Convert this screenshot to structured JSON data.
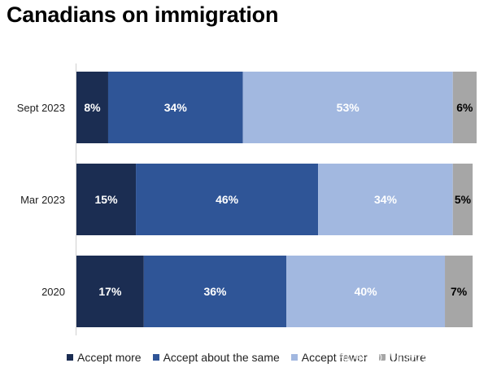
{
  "chart_data": {
    "type": "bar",
    "orientation": "horizontal",
    "stacked": true,
    "title": "Canadians on immigration",
    "categories": [
      "Sept 2023",
      "Mar 2023",
      "2020"
    ],
    "series": [
      {
        "name": "Accept more",
        "values": [
          8,
          15,
          17
        ],
        "labels": [
          "8%",
          "15%",
          "17%"
        ],
        "color": "#1b2d52",
        "label_color": "#ffffff"
      },
      {
        "name": "Accept about the same",
        "values": [
          34,
          46,
          36
        ],
        "labels": [
          "34%",
          "46%",
          "36%"
        ],
        "color": "#2f5597",
        "label_color": "#ffffff"
      },
      {
        "name": "Accept fewer",
        "values": [
          53,
          34,
          40
        ],
        "labels": [
          "53%",
          "34%",
          "40%"
        ],
        "color": "#a2b8e0",
        "label_color": "#ffffff"
      },
      {
        "name": "Unsure",
        "values": [
          6,
          5,
          7
        ],
        "labels": [
          "6%",
          "5%",
          "7%"
        ],
        "color": "#a6a6a6",
        "label_color": "#000000"
      }
    ],
    "xlim": [
      0,
      101
    ],
    "grid": false,
    "legend_position": "bottom"
  },
  "watermark": "知乎 @八仙过海加拿大"
}
